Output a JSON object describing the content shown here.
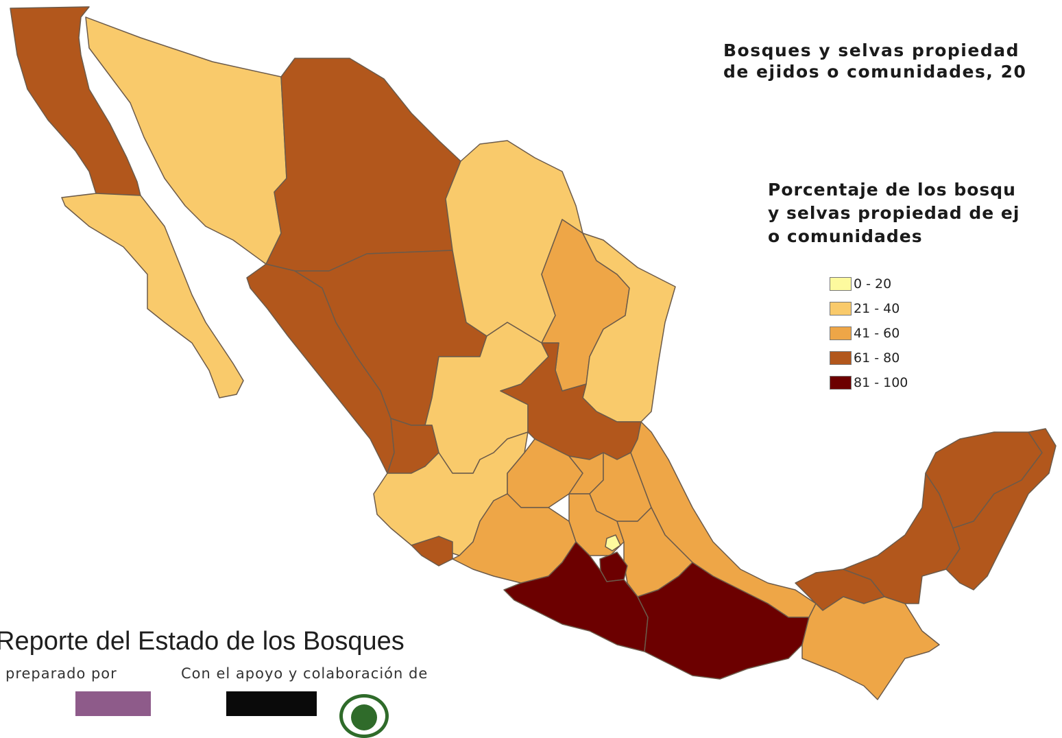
{
  "title": {
    "line1": "Bosques y selvas propiedad",
    "line2": "de ejidos o comunidades, 20"
  },
  "legend": {
    "title_line1": "Porcentaje de los bosqu",
    "title_line2": "y selvas propiedad de ej",
    "title_line3": "o comunidades",
    "classes": [
      {
        "label": "0 - 20",
        "color": "#fdfa9e"
      },
      {
        "label": "21 - 40",
        "color": "#f9ca6b"
      },
      {
        "label": "41 - 60",
        "color": "#eea647"
      },
      {
        "label": "61 - 80",
        "color": "#b2571c"
      },
      {
        "label": "81 - 100",
        "color": "#6c0000"
      }
    ]
  },
  "footer": {
    "report_title": "Reporte del Estado de los Bosques",
    "prepared_by": "preparado por",
    "support": "Con el apoyo y colaboración de"
  },
  "regions": [
    {
      "name": "Baja California",
      "class": "61 - 80"
    },
    {
      "name": "Baja California Sur",
      "class": "21 - 40"
    },
    {
      "name": "Sonora",
      "class": "21 - 40"
    },
    {
      "name": "Chihuahua",
      "class": "61 - 80"
    },
    {
      "name": "Sinaloa",
      "class": "61 - 80"
    },
    {
      "name": "Durango",
      "class": "61 - 80"
    },
    {
      "name": "Coahuila",
      "class": "21 - 40"
    },
    {
      "name": "Nuevo León",
      "class": "41 - 60"
    },
    {
      "name": "Tamaulipas",
      "class": "21 - 40"
    },
    {
      "name": "Zacatecas",
      "class": "21 - 40"
    },
    {
      "name": "San Luis Potosí",
      "class": "61 - 80"
    },
    {
      "name": "Nayarit",
      "class": "61 - 80"
    },
    {
      "name": "Jalisco",
      "class": "21 - 40"
    },
    {
      "name": "Guanajuato",
      "class": "41 - 60"
    },
    {
      "name": "Querétaro",
      "class": "41 - 60"
    },
    {
      "name": "Hidalgo",
      "class": "41 - 60"
    },
    {
      "name": "Veracruz",
      "class": "41 - 60"
    },
    {
      "name": "Colima",
      "class": "61 - 80"
    },
    {
      "name": "Michoacán",
      "class": "41 - 60"
    },
    {
      "name": "Estado de México",
      "class": "41 - 60"
    },
    {
      "name": "Ciudad de México",
      "class": "0 - 20"
    },
    {
      "name": "Morelos",
      "class": "81 - 100"
    },
    {
      "name": "Puebla",
      "class": "41 - 60"
    },
    {
      "name": "Tlaxcala",
      "class": "41 - 60"
    },
    {
      "name": "Guerrero",
      "class": "81 - 100"
    },
    {
      "name": "Oaxaca",
      "class": "81 - 100"
    },
    {
      "name": "Tabasco",
      "class": "61 - 80"
    },
    {
      "name": "Chiapas",
      "class": "41 - 60"
    },
    {
      "name": "Campeche",
      "class": "61 - 80"
    },
    {
      "name": "Yucatán",
      "class": "61 - 80"
    },
    {
      "name": "Quintana Roo",
      "class": "61 - 80"
    }
  ]
}
